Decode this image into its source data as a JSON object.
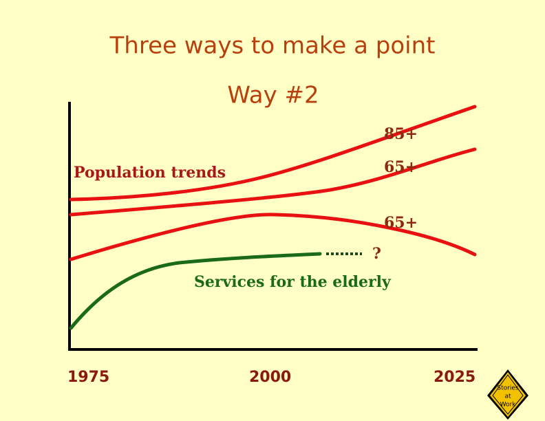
{
  "header": {
    "title": "Three ways to make a point",
    "subtitle": "Way #2"
  },
  "diagram": {
    "left_label": "Population trends",
    "curve_labels": [
      "85+",
      "65+",
      "65+"
    ],
    "uncertain_label": "?",
    "services_label": "Services for the elderly",
    "x_labels": [
      "1975",
      "2000",
      "2025"
    ]
  },
  "logo": {
    "lines": [
      "Stories",
      "at",
      "Work"
    ]
  }
}
